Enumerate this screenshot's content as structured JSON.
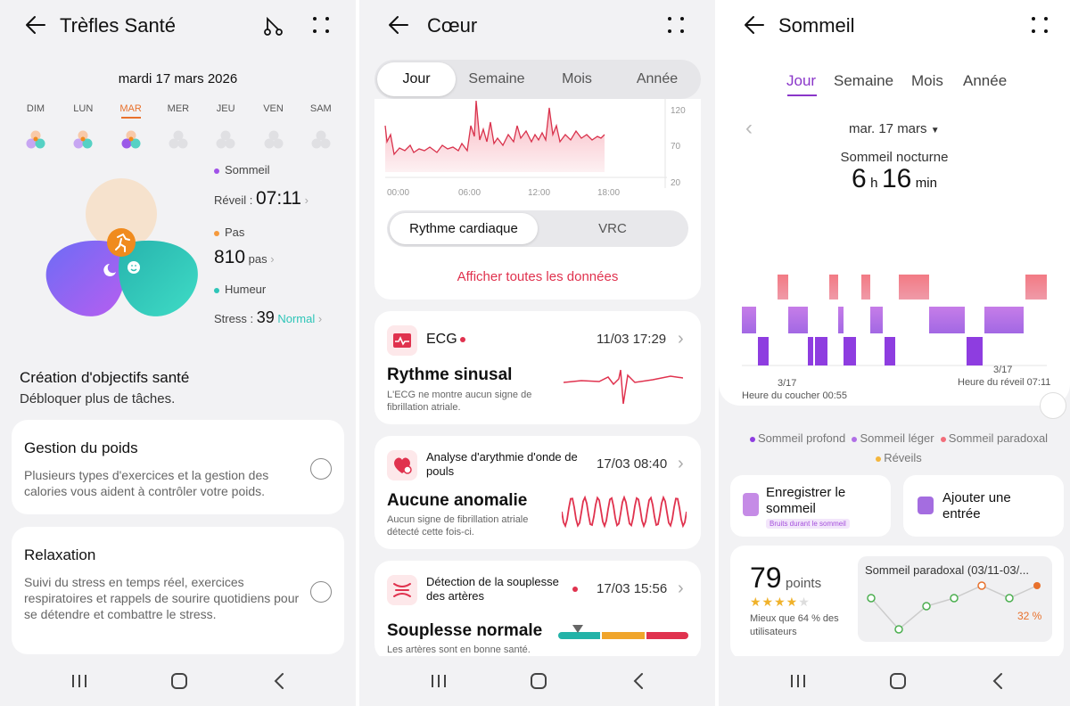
{
  "screen1": {
    "title": "Trèfles Santé",
    "date": "mardi 17 mars 2026",
    "days": [
      "DIM",
      "LUN",
      "MAR",
      "MER",
      "JEU",
      "VEN",
      "SAM"
    ],
    "active_day": "MAR",
    "sleep_label": "Sommeil",
    "wake_label": "Réveil :",
    "wake_value": "07:11",
    "steps_label": "Pas",
    "steps_value": "810",
    "steps_unit": "pas",
    "mood_label": "Humeur",
    "stress_label": "Stress :",
    "stress_value": "39",
    "stress_status": "Normal",
    "goals_title": "Création d'objectifs santé",
    "goals_subtitle": "Débloquer plus de tâches.",
    "cards": [
      {
        "title": "Gestion du poids",
        "desc": "Plusieurs types d'exercices et la gestion des calories vous aident à contrôler votre poids."
      },
      {
        "title": "Relaxation",
        "desc": "Suivi du stress en temps réel, exercices respiratoires et rappels de sourire quotidiens pour se détendre et combattre le stress."
      }
    ],
    "colors": {
      "sleep": "#a052e8",
      "steps": "#f59a3d",
      "mood": "#2ec5b8",
      "accent": "#e8712c"
    }
  },
  "screen2": {
    "title": "Cœur",
    "tabs": [
      "Jour",
      "Semaine",
      "Mois",
      "Année"
    ],
    "active_tab": "Jour",
    "hr_chart": {
      "y_ticks": [
        "120",
        "70",
        "20"
      ],
      "x_ticks": [
        "00:00",
        "06:00",
        "12:00",
        "18:00"
      ]
    },
    "toggle": [
      "Rythme cardiaque",
      "VRC"
    ],
    "show_all": "Afficher toutes les données",
    "ecg": {
      "title": "ECG",
      "date": "11/03 17:29",
      "result": "Rythme sinusal",
      "desc": "L'ECG ne montre aucun signe de fibrillation atriale."
    },
    "arrhythmia": {
      "title": "Analyse d'arythmie d'onde de pouls",
      "date": "17/03 08:40",
      "result": "Aucune anomalie",
      "desc": "Aucun signe de fibrillation atriale détecté cette fois-ci."
    },
    "artery": {
      "title": "Détection de la souplesse des artères",
      "date": "17/03 15:56",
      "result": "Souplesse normale",
      "desc": "Les artères sont en bonne santé."
    },
    "colors": {
      "accent": "#e0324e"
    }
  },
  "screen3": {
    "title": "Sommeil",
    "tabs": [
      "Jour",
      "Semaine",
      "Mois",
      "Année"
    ],
    "active_tab": "Jour",
    "date": "mar. 17 mars",
    "night_label": "Sommeil nocturne",
    "hours": "6",
    "h_unit": "h",
    "minutes": "16",
    "min_unit": "min",
    "start_date": "3/17",
    "start_label": "Heure du coucher 00:55",
    "end_date": "3/17",
    "end_label": "Heure du réveil 07:11",
    "legend": [
      "Sommeil profond",
      "Sommeil léger",
      "Sommeil paradoxal",
      "Réveils"
    ],
    "record_label": "Enregistrer le sommeil",
    "record_badge": "Bruits durant le sommeil",
    "add_label": "Ajouter une entrée",
    "score": "79",
    "score_unit": "points",
    "score_stars": 4,
    "score_desc": "Mieux que 64 % des utilisateurs",
    "rem_title": "Sommeil paradoxal (03/11-03/...",
    "rem_pct": "32 %",
    "colors": {
      "deep": "#8e3de0",
      "light": "#b06fe6",
      "rem": "#f26d7a",
      "awake": "#f4b63c",
      "accent": "#8a36c9"
    }
  }
}
